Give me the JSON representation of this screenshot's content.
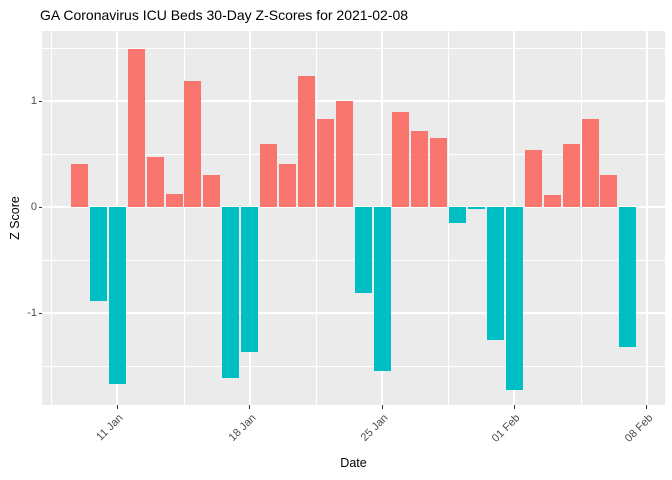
{
  "chart_data": {
    "type": "bar",
    "title": "GA Coronavirus ICU Beds 30-Day Z-Scores for 2021-02-08",
    "xlabel": "Date",
    "ylabel": "Z Score",
    "values": [
      0.41,
      -0.89,
      -1.67,
      1.49,
      0.47,
      0.12,
      1.19,
      0.3,
      -1.61,
      -1.37,
      0.59,
      0.41,
      1.24,
      0.83,
      1.0,
      -0.81,
      -1.55,
      0.9,
      0.72,
      0.65,
      -0.15,
      -0.02,
      -1.25,
      -1.73,
      0.54,
      0.11,
      0.59,
      0.83,
      0.3,
      -1.32
    ],
    "x_ticks": [
      {
        "label": "11 Jan",
        "day": 2
      },
      {
        "label": "18 Jan",
        "day": 9
      },
      {
        "label": "25 Jan",
        "day": 16
      },
      {
        "label": "01 Feb",
        "day": 23
      },
      {
        "label": "08 Feb",
        "day": 30
      }
    ],
    "x_minor_days": [
      -1.5,
      5.5,
      12.5,
      19.5,
      26.5
    ],
    "y_ticks": [
      {
        "label": "1",
        "value": 1
      },
      {
        "label": "0",
        "value": 0
      },
      {
        "label": "-1",
        "value": -1
      }
    ],
    "y_minor_values": [
      1.5,
      0.5,
      -0.5,
      -1.5
    ],
    "ylim": [
      -1.86,
      1.66
    ],
    "legend": "none",
    "grid": true,
    "colors": {
      "positive": "#F8766D",
      "negative": "#00BFC4",
      "panel_bg": "#EBEBEB",
      "grid": "#FFFFFF",
      "axis_text": "#4D4D4D",
      "tick_mark": "#333333",
      "title_text": "#000000"
    }
  }
}
